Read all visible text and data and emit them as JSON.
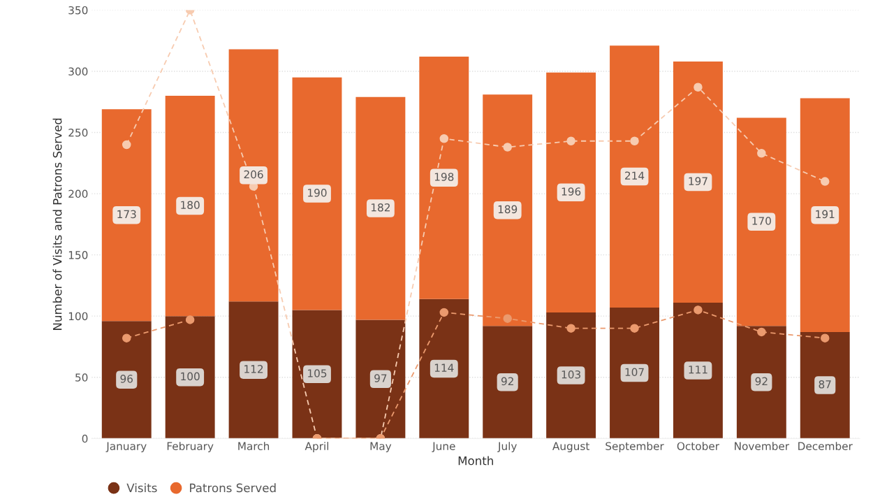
{
  "chart_data": {
    "type": "bar",
    "stacked": true,
    "xlabel": "Month",
    "ylabel": "Number of Visits and Patrons Served",
    "categories": [
      "January",
      "February",
      "March",
      "April",
      "May",
      "June",
      "July",
      "August",
      "September",
      "October",
      "November",
      "December"
    ],
    "series": [
      {
        "name": "Visits",
        "color": "#7a3216",
        "values": [
          96,
          100,
          112,
          105,
          97,
          114,
          92,
          103,
          107,
          111,
          92,
          87
        ],
        "value_labels": [
          "96",
          "100",
          "112",
          "105",
          "97",
          "114",
          "92",
          "103",
          "107",
          "111",
          "92",
          "87"
        ]
      },
      {
        "name": "Patrons Served",
        "color": "#e8692e",
        "values": [
          173,
          180,
          206,
          190,
          182,
          198,
          189,
          196,
          214,
          197,
          170,
          191
        ],
        "value_labels": [
          "173",
          "180",
          "206",
          "190",
          "182",
          "198",
          "189",
          "196",
          "214",
          "197",
          "170",
          "191"
        ]
      },
      {
        "type": "line",
        "color": "#f7cbb0",
        "marker": "circle",
        "line_style": "dashed",
        "values": [
          240,
          350,
          206,
          0,
          0,
          245,
          238,
          243,
          243,
          287,
          233,
          210
        ]
      },
      {
        "type": "line",
        "color": "#eb9a6e",
        "marker": "circle",
        "line_style": "dashed",
        "values": [
          82,
          97,
          null,
          0,
          0,
          103,
          98,
          90,
          90,
          105,
          87,
          82
        ]
      }
    ],
    "ylim": [
      0,
      350
    ],
    "yticks": [
      0,
      50,
      100,
      150,
      200,
      250,
      300,
      350
    ],
    "grid": "y",
    "legend": "bottom left"
  }
}
